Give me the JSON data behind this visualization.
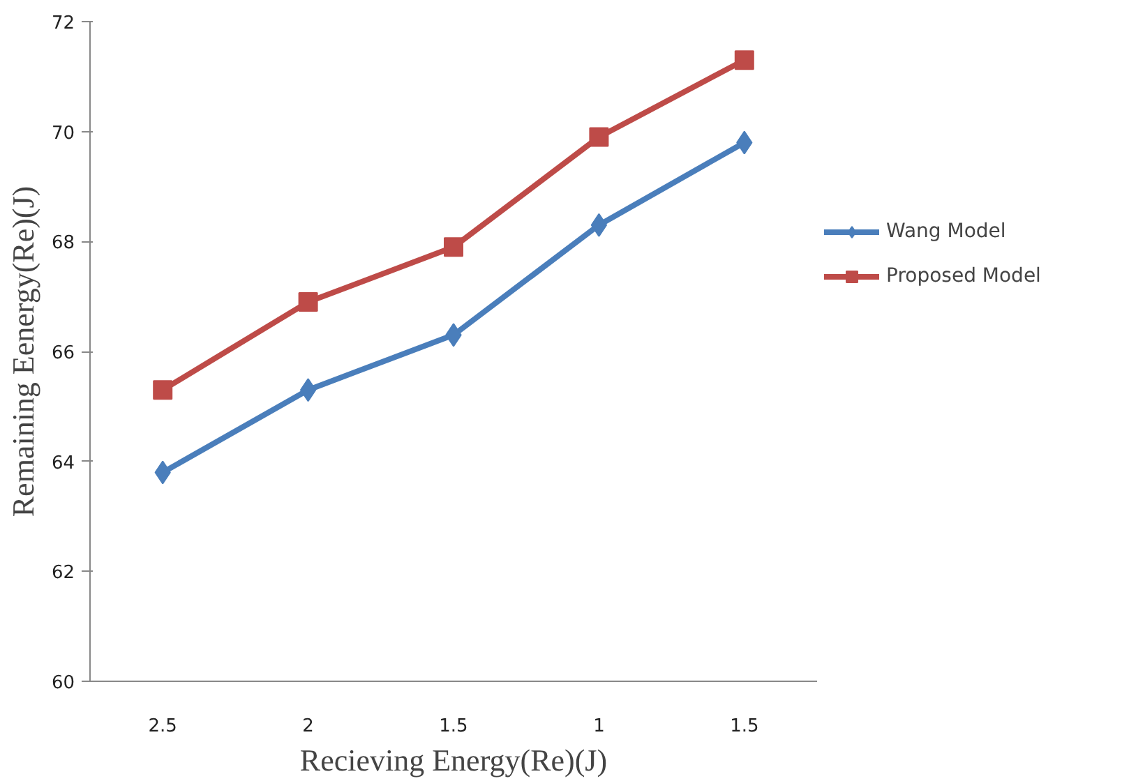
{
  "chart_data": {
    "type": "line",
    "xlabel": "Recieving Energy(Re)(J)",
    "ylabel": "Remaining Eenergy(Re)(J)",
    "categories": [
      "2.5",
      "2",
      "1.5",
      "1",
      "1.5"
    ],
    "series": [
      {
        "name": "Wang Model",
        "color": "#4a7ebb",
        "marker": "diamond",
        "values": [
          63.8,
          65.3,
          66.3,
          68.3,
          69.8
        ]
      },
      {
        "name": "Proposed Model",
        "color": "#be4b48",
        "marker": "square",
        "values": [
          65.3,
          66.9,
          67.9,
          69.9,
          71.3
        ]
      }
    ],
    "ylim": [
      60,
      72
    ],
    "yticks": [
      60,
      62,
      64,
      66,
      68,
      70,
      72
    ],
    "grid": false,
    "legend": "right",
    "line_style": "solid"
  }
}
